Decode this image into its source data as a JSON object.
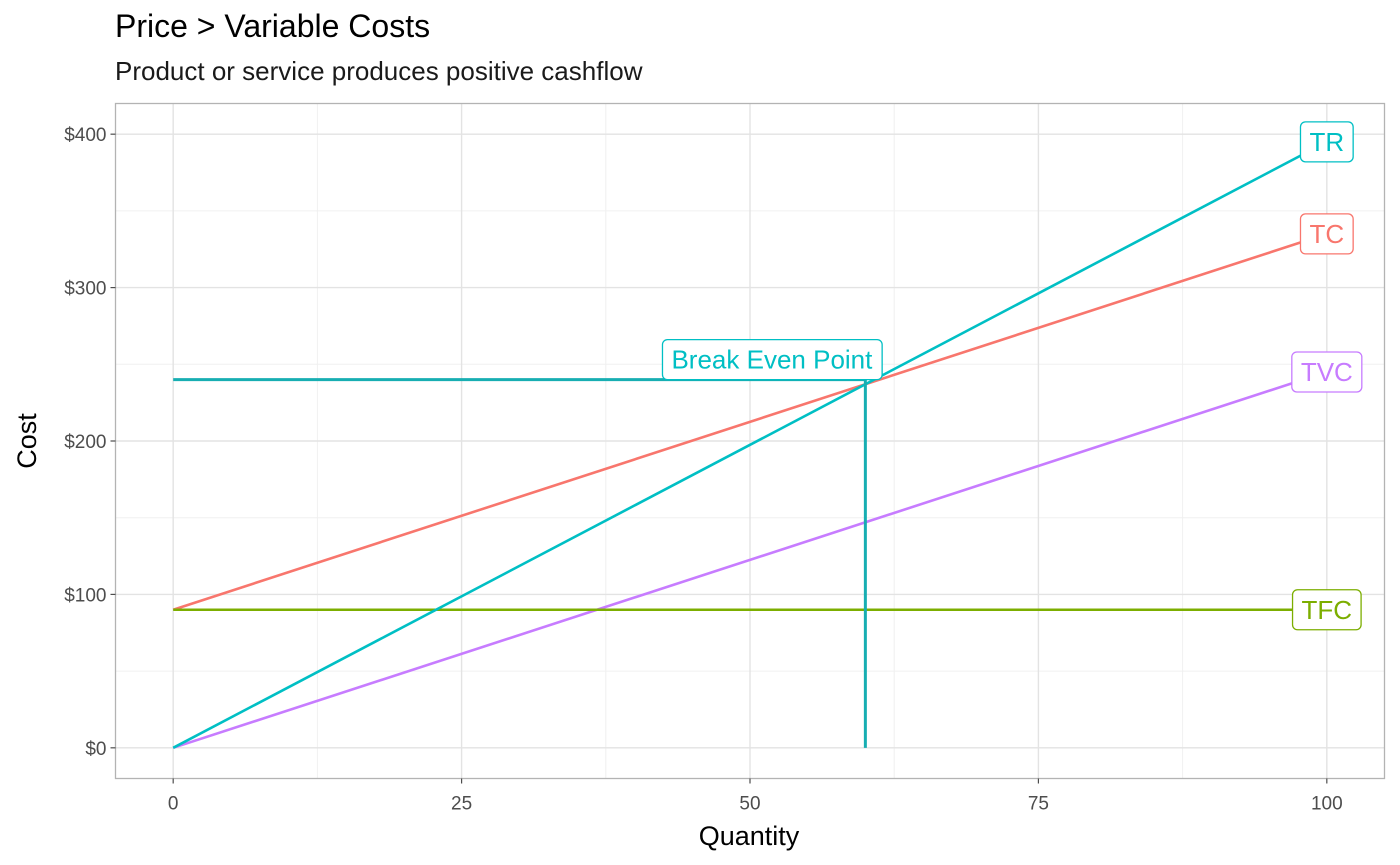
{
  "chart_data": {
    "type": "line",
    "title": "Price > Variable Costs",
    "subtitle": "Product or service produces positive cashflow",
    "xlabel": "Quantity",
    "ylabel": "Cost",
    "xlim": [
      -5,
      105
    ],
    "ylim": [
      -20,
      420
    ],
    "x_ticks": [
      0,
      25,
      50,
      75,
      100
    ],
    "y_ticks": [
      0,
      100,
      200,
      300,
      400
    ],
    "y_tick_labels": [
      "$0",
      "$100",
      "$200",
      "$300",
      "$400"
    ],
    "grid": true,
    "series": [
      {
        "name": "TC",
        "color": "#F8766D",
        "x": [
          0,
          100
        ],
        "y": [
          90,
          335
        ]
      },
      {
        "name": "TFC",
        "color": "#7CAE00",
        "x": [
          0,
          100
        ],
        "y": [
          90,
          90
        ]
      },
      {
        "name": "TR",
        "color": "#00BFC4",
        "x": [
          0,
          100
        ],
        "y": [
          0,
          395
        ]
      },
      {
        "name": "TVC",
        "color": "#C77CFF",
        "x": [
          0,
          100
        ],
        "y": [
          0,
          245
        ]
      }
    ],
    "break_even": {
      "label": "Break Even Point",
      "x": 60,
      "y": 240,
      "color": "#17AEB2",
      "label_color": "#00BFC4"
    }
  }
}
